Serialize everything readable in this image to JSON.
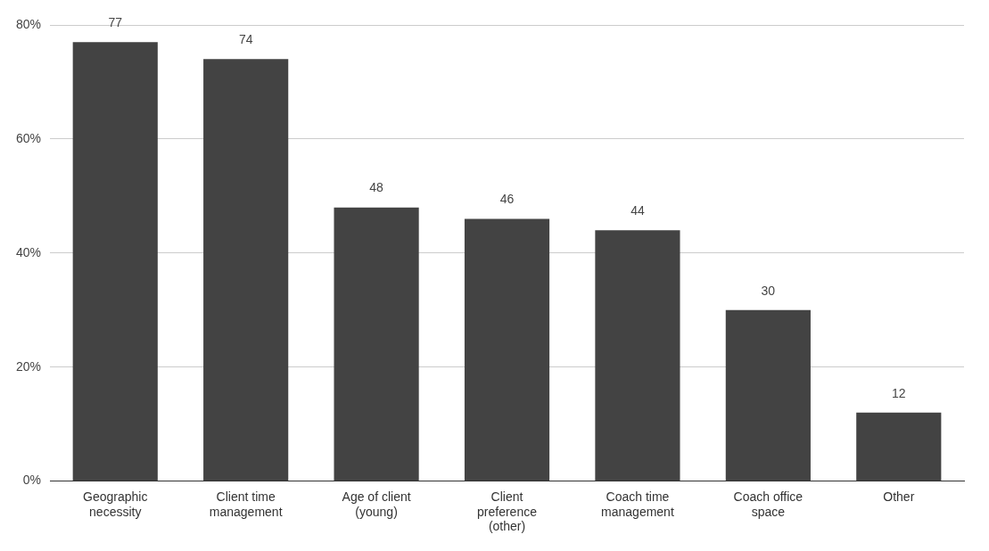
{
  "chart_data": {
    "type": "bar",
    "categories": [
      "Geographic necessity",
      "Client time management",
      "Age of client (young)",
      "Client preference (other)",
      "Coach time management",
      "Coach office space",
      "Other"
    ],
    "values": [
      77,
      74,
      48,
      46,
      44,
      30,
      12
    ],
    "color": "#434343",
    "ylim": [
      0,
      80
    ],
    "yticks": [
      {
        "value": 0,
        "label": "0%"
      },
      {
        "value": 20,
        "label": "20%"
      },
      {
        "value": 40,
        "label": "40%"
      },
      {
        "value": 60,
        "label": "60%"
      },
      {
        "value": 80,
        "label": "80%"
      }
    ],
    "grid": "y",
    "legend": false,
    "data_labels": true
  }
}
